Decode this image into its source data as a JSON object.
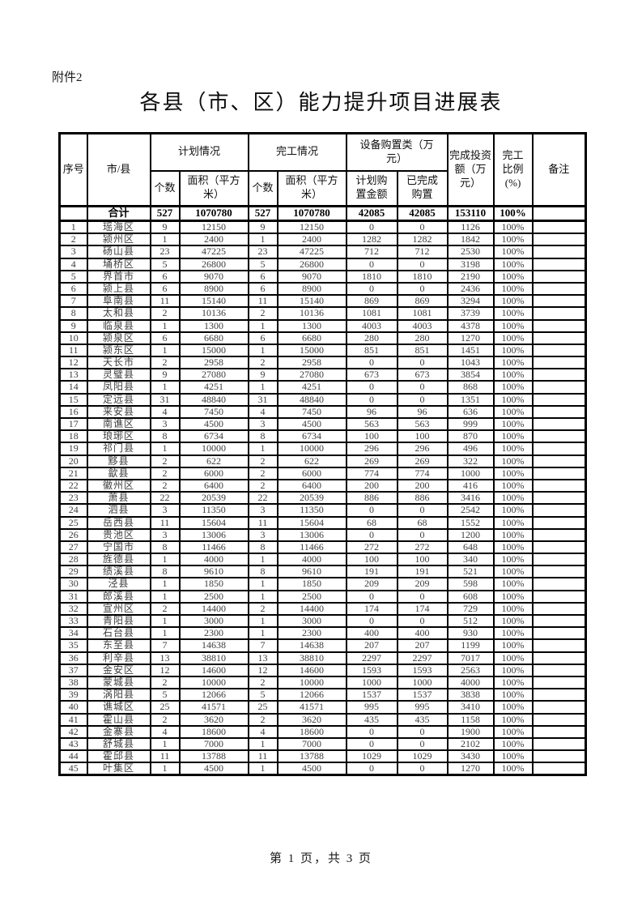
{
  "page": {
    "attachment_label": "附件2",
    "title": "各县（市、区）能力提升项目进展表",
    "footer": "第 1 页，共 3 页"
  },
  "table": {
    "headers": {
      "seq": "序号",
      "region": "市/县",
      "plan_group": "计划情况",
      "done_group": "完工情况",
      "equip_group": "设备购置类（万\n元）",
      "plan_count": "个数",
      "plan_area": "面积（平方\n米）",
      "done_count": "个数",
      "done_area": "面积（平方\n米）",
      "equip_planned": "计划购\n置金额",
      "equip_done": "已完成\n购置",
      "investment": "完成投资\n额（万\n元）",
      "ratio": "完工\n比例\n(%)",
      "remark": "备注"
    },
    "total": {
      "label": "合计",
      "values": [
        "527",
        "1070780",
        "527",
        "1070780",
        "42085",
        "42085",
        "153110",
        "100%",
        ""
      ]
    },
    "rows": [
      [
        "1",
        "瑶海区",
        "9",
        "12150",
        "9",
        "12150",
        "0",
        "0",
        "1126",
        "100%",
        ""
      ],
      [
        "2",
        "颍州区",
        "1",
        "2400",
        "1",
        "2400",
        "1282",
        "1282",
        "1842",
        "100%",
        ""
      ],
      [
        "3",
        "砀山县",
        "23",
        "47225",
        "23",
        "47225",
        "712",
        "712",
        "2530",
        "100%",
        ""
      ],
      [
        "4",
        "埇桥区",
        "5",
        "26800",
        "5",
        "26800",
        "0",
        "0",
        "3198",
        "100%",
        ""
      ],
      [
        "5",
        "界首市",
        "6",
        "9070",
        "6",
        "9070",
        "1810",
        "1810",
        "2190",
        "100%",
        ""
      ],
      [
        "6",
        "颍上县",
        "6",
        "8900",
        "6",
        "8900",
        "0",
        "0",
        "2436",
        "100%",
        ""
      ],
      [
        "7",
        "阜南县",
        "11",
        "15140",
        "11",
        "15140",
        "869",
        "869",
        "3294",
        "100%",
        ""
      ],
      [
        "8",
        "太和县",
        "2",
        "10136",
        "2",
        "10136",
        "1081",
        "1081",
        "3739",
        "100%",
        ""
      ],
      [
        "9",
        "临泉县",
        "1",
        "1300",
        "1",
        "1300",
        "4003",
        "4003",
        "4378",
        "100%",
        ""
      ],
      [
        "10",
        "颍泉区",
        "6",
        "6680",
        "6",
        "6680",
        "280",
        "280",
        "1270",
        "100%",
        ""
      ],
      [
        "11",
        "颍东区",
        "1",
        "15000",
        "1",
        "15000",
        "851",
        "851",
        "1451",
        "100%",
        ""
      ],
      [
        "12",
        "天长市",
        "2",
        "2958",
        "2",
        "2958",
        "0",
        "0",
        "1043",
        "100%",
        ""
      ],
      [
        "13",
        "灵璧县",
        "9",
        "27080",
        "9",
        "27080",
        "673",
        "673",
        "3854",
        "100%",
        ""
      ],
      [
        "14",
        "凤阳县",
        "1",
        "4251",
        "1",
        "4251",
        "0",
        "0",
        "868",
        "100%",
        ""
      ],
      [
        "15",
        "定远县",
        "31",
        "48840",
        "31",
        "48840",
        "0",
        "0",
        "1351",
        "100%",
        ""
      ],
      [
        "16",
        "来安县",
        "4",
        "7450",
        "4",
        "7450",
        "96",
        "96",
        "636",
        "100%",
        ""
      ],
      [
        "17",
        "南谯区",
        "3",
        "4500",
        "3",
        "4500",
        "563",
        "563",
        "999",
        "100%",
        ""
      ],
      [
        "18",
        "琅琊区",
        "8",
        "6734",
        "8",
        "6734",
        "100",
        "100",
        "870",
        "100%",
        ""
      ],
      [
        "19",
        "祁门县",
        "1",
        "10000",
        "1",
        "10000",
        "296",
        "296",
        "496",
        "100%",
        ""
      ],
      [
        "20",
        "黟县",
        "2",
        "622",
        "2",
        "622",
        "269",
        "269",
        "322",
        "100%",
        ""
      ],
      [
        "21",
        "歙县",
        "2",
        "6000",
        "2",
        "6000",
        "774",
        "774",
        "1000",
        "100%",
        ""
      ],
      [
        "22",
        "徽州区",
        "2",
        "6400",
        "2",
        "6400",
        "200",
        "200",
        "416",
        "100%",
        ""
      ],
      [
        "23",
        "萧县",
        "22",
        "20539",
        "22",
        "20539",
        "886",
        "886",
        "3416",
        "100%",
        ""
      ],
      [
        "24",
        "泗县",
        "3",
        "11350",
        "3",
        "11350",
        "0",
        "0",
        "2542",
        "100%",
        ""
      ],
      [
        "25",
        "岳西县",
        "11",
        "15604",
        "11",
        "15604",
        "68",
        "68",
        "1552",
        "100%",
        ""
      ],
      [
        "26",
        "贵池区",
        "3",
        "13006",
        "3",
        "13006",
        "0",
        "0",
        "1200",
        "100%",
        ""
      ],
      [
        "27",
        "宁国市",
        "8",
        "11466",
        "8",
        "11466",
        "272",
        "272",
        "648",
        "100%",
        ""
      ],
      [
        "28",
        "旌德县",
        "1",
        "4000",
        "1",
        "4000",
        "100",
        "100",
        "340",
        "100%",
        ""
      ],
      [
        "29",
        "绩溪县",
        "8",
        "9610",
        "8",
        "9610",
        "191",
        "191",
        "521",
        "100%",
        ""
      ],
      [
        "30",
        "泾县",
        "1",
        "1850",
        "1",
        "1850",
        "209",
        "209",
        "598",
        "100%",
        ""
      ],
      [
        "31",
        "郎溪县",
        "1",
        "2500",
        "1",
        "2500",
        "0",
        "0",
        "608",
        "100%",
        ""
      ],
      [
        "32",
        "宣州区",
        "2",
        "14400",
        "2",
        "14400",
        "174",
        "174",
        "729",
        "100%",
        ""
      ],
      [
        "33",
        "青阳县",
        "1",
        "3000",
        "1",
        "3000",
        "0",
        "0",
        "512",
        "100%",
        ""
      ],
      [
        "34",
        "石台县",
        "1",
        "2300",
        "1",
        "2300",
        "400",
        "400",
        "930",
        "100%",
        ""
      ],
      [
        "35",
        "东至县",
        "7",
        "14638",
        "7",
        "14638",
        "207",
        "207",
        "1199",
        "100%",
        ""
      ],
      [
        "36",
        "利辛县",
        "13",
        "38810",
        "13",
        "38810",
        "2297",
        "2297",
        "7017",
        "100%",
        ""
      ],
      [
        "37",
        "金安区",
        "12",
        "14600",
        "12",
        "14600",
        "1593",
        "1593",
        "2563",
        "100%",
        ""
      ],
      [
        "38",
        "蒙城县",
        "2",
        "10000",
        "2",
        "10000",
        "1000",
        "1000",
        "4000",
        "100%",
        ""
      ],
      [
        "39",
        "涡阳县",
        "5",
        "12066",
        "5",
        "12066",
        "1537",
        "1537",
        "3838",
        "100%",
        ""
      ],
      [
        "40",
        "谯城区",
        "25",
        "41571",
        "25",
        "41571",
        "995",
        "995",
        "3410",
        "100%",
        ""
      ],
      [
        "41",
        "霍山县",
        "2",
        "3620",
        "2",
        "3620",
        "435",
        "435",
        "1158",
        "100%",
        ""
      ],
      [
        "42",
        "金寨县",
        "4",
        "18600",
        "4",
        "18600",
        "0",
        "0",
        "1900",
        "100%",
        ""
      ],
      [
        "43",
        "舒城县",
        "1",
        "7000",
        "1",
        "7000",
        "0",
        "0",
        "2102",
        "100%",
        ""
      ],
      [
        "44",
        "霍邱县",
        "11",
        "13788",
        "11",
        "13788",
        "1029",
        "1029",
        "3430",
        "100%",
        ""
      ],
      [
        "45",
        "叶集区",
        "1",
        "4500",
        "1",
        "4500",
        "0",
        "0",
        "1270",
        "100%",
        ""
      ]
    ]
  }
}
